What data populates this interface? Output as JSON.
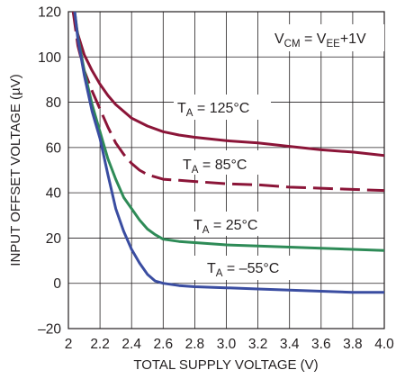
{
  "chart_data": {
    "type": "line",
    "title": "",
    "xlabel": "TOTAL SUPPLY VOLTAGE (V)",
    "ylabel": "INPUT OFFSET VOLTAGE (µV)",
    "xlim": [
      2.0,
      4.0
    ],
    "ylim": [
      -20,
      120
    ],
    "x_ticks": [
      2.0,
      2.2,
      2.4,
      2.6,
      2.8,
      3.0,
      3.2,
      3.4,
      3.6,
      3.8,
      4.0
    ],
    "x_tick_labels": [
      "2",
      "2.2",
      "2.4",
      "2.6",
      "2.8",
      "3.0",
      "3.2",
      "3.4",
      "3.6",
      "3.8",
      "4.0"
    ],
    "y_ticks": [
      -20,
      0,
      20,
      40,
      60,
      80,
      100,
      120
    ],
    "y_tick_labels": [
      "–20",
      "0",
      "20",
      "40",
      "60",
      "80",
      "100",
      "120"
    ],
    "grid": true,
    "condition": {
      "main": "V",
      "sub1": "CM",
      "mid": " = V",
      "sub2": "EE",
      "tail": "+1V"
    },
    "series": [
      {
        "name": "T_A = 125°C",
        "label": {
          "main": "T",
          "sub": "A",
          "rest": " = 125°C"
        },
        "color": "#8b1538",
        "dash": false,
        "x": [
          2.03,
          2.06,
          2.1,
          2.15,
          2.2,
          2.25,
          2.3,
          2.4,
          2.5,
          2.6,
          2.7,
          2.8,
          3.0,
          3.2,
          3.4,
          3.6,
          3.8,
          4.0
        ],
        "y": [
          120,
          110,
          101,
          94,
          88,
          83,
          79,
          73,
          69.5,
          67,
          65.5,
          64.5,
          63,
          62,
          60.5,
          59,
          58,
          56.5
        ]
      },
      {
        "name": "T_A = 85°C",
        "label": {
          "main": "T",
          "sub": "A",
          "rest": " = 85°C"
        },
        "color": "#8b1538",
        "dash": true,
        "x": [
          2.03,
          2.06,
          2.1,
          2.15,
          2.2,
          2.25,
          2.3,
          2.35,
          2.4,
          2.45,
          2.5,
          2.6,
          2.7,
          2.8,
          3.0,
          3.2,
          3.4,
          3.6,
          3.8,
          4.0
        ],
        "y": [
          120,
          105,
          94,
          85,
          77,
          69,
          62,
          57,
          53,
          50,
          48,
          46,
          45.5,
          45,
          44,
          43.5,
          42.5,
          42,
          41.5,
          41
        ]
      },
      {
        "name": "T_A = 25°C",
        "label": {
          "main": "T",
          "sub": "A",
          "rest": " = 25°C"
        },
        "color": "#2e8b57",
        "dash": false,
        "x": [
          2.04,
          2.06,
          2.1,
          2.15,
          2.2,
          2.25,
          2.3,
          2.35,
          2.4,
          2.45,
          2.5,
          2.55,
          2.6,
          2.7,
          2.8,
          3.0,
          3.2,
          3.4,
          3.6,
          3.8,
          4.0
        ],
        "y": [
          120,
          109,
          94,
          79,
          67,
          55,
          46,
          38,
          33,
          28,
          24,
          21.5,
          19.5,
          18.5,
          18,
          17,
          16.5,
          16,
          15.5,
          15,
          14.5
        ]
      },
      {
        "name": "T_A = –55°C",
        "label": {
          "main": "T",
          "sub": "A",
          "rest": " = –55°C"
        },
        "color": "#3a4da1",
        "dash": false,
        "x": [
          2.04,
          2.06,
          2.1,
          2.15,
          2.2,
          2.25,
          2.3,
          2.35,
          2.4,
          2.45,
          2.5,
          2.55,
          2.6,
          2.7,
          2.8,
          3.0,
          3.2,
          3.4,
          3.6,
          3.8,
          4.0
        ],
        "y": [
          120,
          108,
          92,
          76,
          64,
          48,
          33,
          23,
          15,
          9,
          4,
          1,
          0,
          -1,
          -1.5,
          -2,
          -2.5,
          -3,
          -3.5,
          -4,
          -4
        ]
      }
    ]
  }
}
